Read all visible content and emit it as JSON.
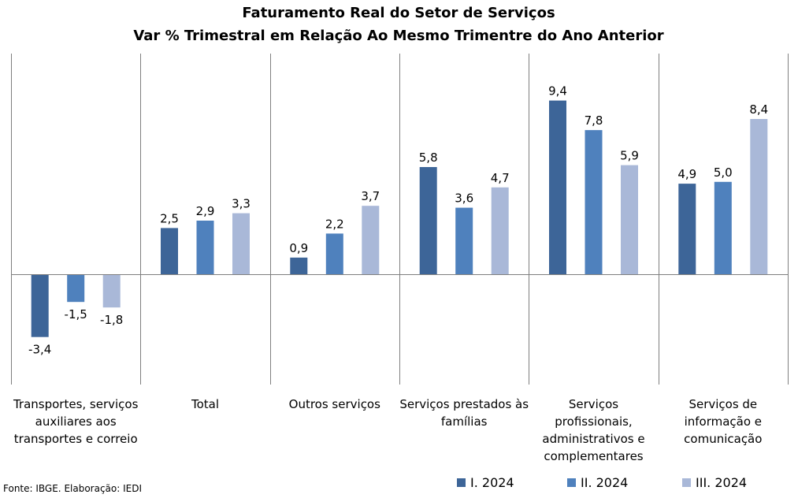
{
  "chart_data": {
    "type": "bar",
    "title": [
      "Faturamento Real do Setor de Serviços",
      "Var % Trimestral em Relação Ao Mesmo Trimentre do Ano Anterior"
    ],
    "categories": [
      [
        "Transportes, serviços",
        "auxiliares aos",
        "transportes e correio"
      ],
      [
        "Total"
      ],
      [
        "Outros serviços"
      ],
      [
        "Serviços prestados às",
        "famílias"
      ],
      [
        "Serviços",
        "profissionais,",
        "administrativos e",
        "complementares"
      ],
      [
        "Serviços de",
        "informação e",
        "comunicação"
      ]
    ],
    "series": [
      {
        "name": "I. 2024",
        "color": "#3d6598",
        "values": [
          -3.4,
          2.5,
          0.9,
          5.8,
          9.4,
          4.9
        ],
        "labels": [
          "-3,4",
          "2,5",
          "0,9",
          "5,8",
          "9,4",
          "4,9"
        ]
      },
      {
        "name": "II. 2024",
        "color": "#4f81bd",
        "values": [
          -1.5,
          2.9,
          2.2,
          3.6,
          7.8,
          5.0
        ],
        "labels": [
          "-1,5",
          "2,9",
          "2,2",
          "3,6",
          "7,8",
          "5,0"
        ]
      },
      {
        "name": "III. 2024",
        "color": "#a9b8d8",
        "values": [
          -1.8,
          3.3,
          3.7,
          4.7,
          5.9,
          8.4
        ],
        "labels": [
          "-1,8",
          "3,3",
          "3,7",
          "4,7",
          "5,9",
          "8,4"
        ]
      }
    ],
    "ylim": [
      -5.5,
      11.8
    ],
    "grid": false,
    "legend": "bottom-right"
  },
  "footer": {
    "source": "Fonte: IBGE. Elaboração: IEDI"
  }
}
